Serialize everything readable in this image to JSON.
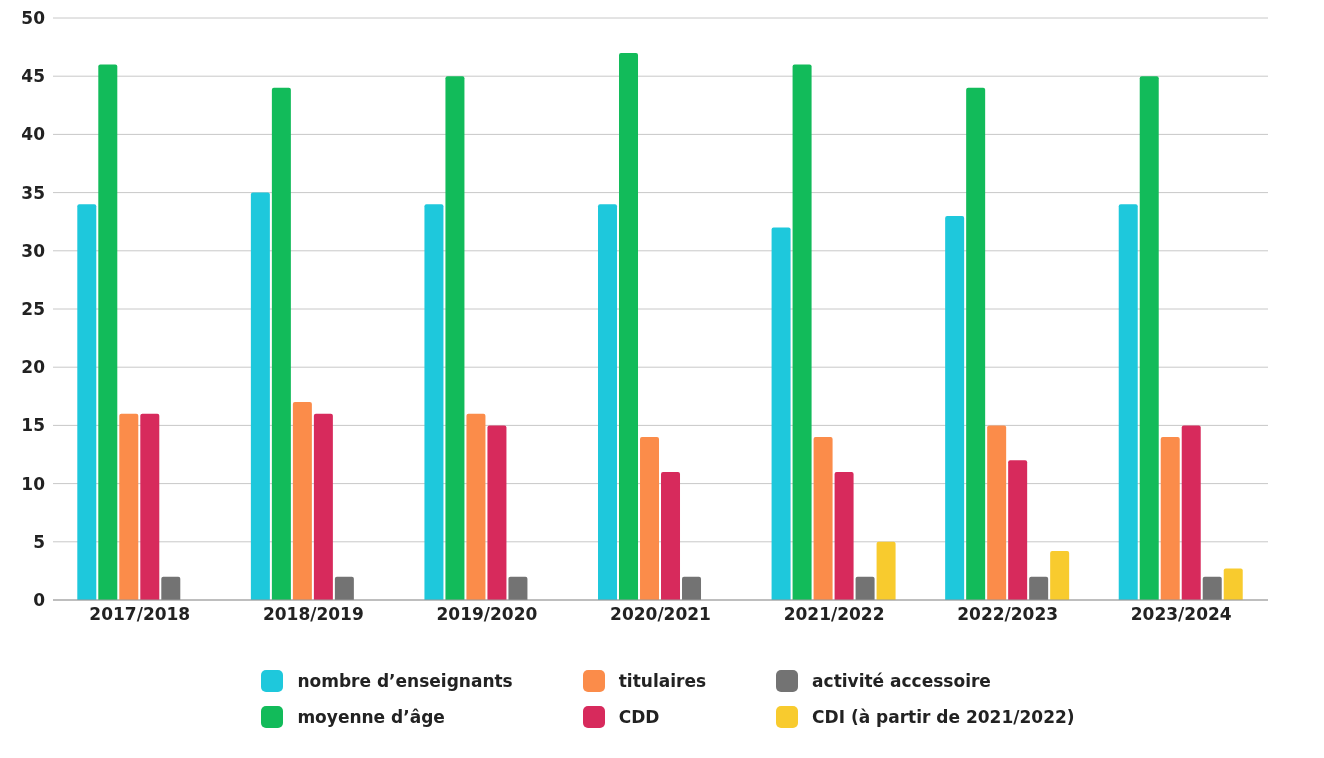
{
  "chart_data": {
    "type": "bar",
    "categories": [
      "2017/2018",
      "2018/2019",
      "2019/2020",
      "2020/2021",
      "2021/2022",
      "2022/2023",
      "2023/2024"
    ],
    "series": [
      {
        "name": "nombre d’enseignants",
        "color": "#1ec8dc",
        "values": [
          34,
          35,
          34,
          34,
          32,
          33,
          34
        ]
      },
      {
        "name": "moyenne d’âge",
        "color": "#12bb5a",
        "values": [
          46,
          44,
          45,
          47,
          46,
          44,
          45
        ]
      },
      {
        "name": "titulaires",
        "color": "#fb8c4a",
        "values": [
          16,
          17,
          16,
          14,
          14,
          15,
          14
        ]
      },
      {
        "name": "CDD",
        "color": "#d72a5c",
        "values": [
          16,
          16,
          15,
          11,
          11,
          12,
          15
        ]
      },
      {
        "name": "activité accessoire",
        "color": "#737373",
        "values": [
          2,
          2,
          2,
          2,
          2,
          2,
          2
        ]
      },
      {
        "name": "CDI (à partir de 2021/2022)",
        "color": "#f8cb2e",
        "values": [
          null,
          null,
          null,
          null,
          5,
          4.2,
          2.7
        ]
      }
    ],
    "ylim": [
      0,
      50
    ],
    "yticks": [
      0,
      5,
      10,
      15,
      20,
      25,
      30,
      35,
      40,
      45,
      50
    ],
    "grid": "y",
    "legend": "bottom"
  }
}
